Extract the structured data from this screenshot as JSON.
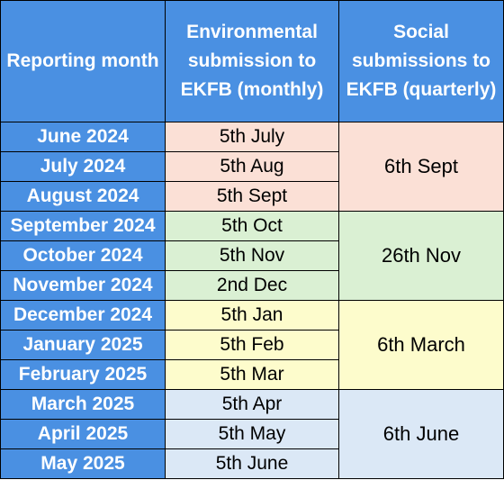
{
  "headers": {
    "month": "Reporting month",
    "environmental": "Environmental submission to EKFB (monthly)",
    "social": "Social submissions to EKFB (quarterly)"
  },
  "quarters": [
    {
      "color": "#fbe0d6",
      "social": "6th Sept",
      "rows": [
        {
          "month": "June 2024",
          "environmental": "5th July"
        },
        {
          "month": "July 2024",
          "environmental": "5th Aug"
        },
        {
          "month": "August 2024",
          "environmental": "5th Sept"
        }
      ]
    },
    {
      "color": "#daf0d3",
      "social": "26th Nov",
      "rows": [
        {
          "month": "September 2024",
          "environmental": "5th Oct"
        },
        {
          "month": "October 2024",
          "environmental": "5th Nov"
        },
        {
          "month": "November 2024",
          "environmental": "2nd Dec"
        }
      ]
    },
    {
      "color": "#fdfccc",
      "social": "6th March",
      "rows": [
        {
          "month": "December 2024",
          "environmental": "5th Jan"
        },
        {
          "month": "January 2025",
          "environmental": "5th Feb"
        },
        {
          "month": "February 2025",
          "environmental": "5th Mar"
        }
      ]
    },
    {
      "color": "#dbe8f6",
      "social": "6th June",
      "rows": [
        {
          "month": "March 2025",
          "environmental": "5th Apr"
        },
        {
          "month": "April 2025",
          "environmental": "5th May"
        },
        {
          "month": "May 2025",
          "environmental": "5th June"
        }
      ]
    }
  ]
}
